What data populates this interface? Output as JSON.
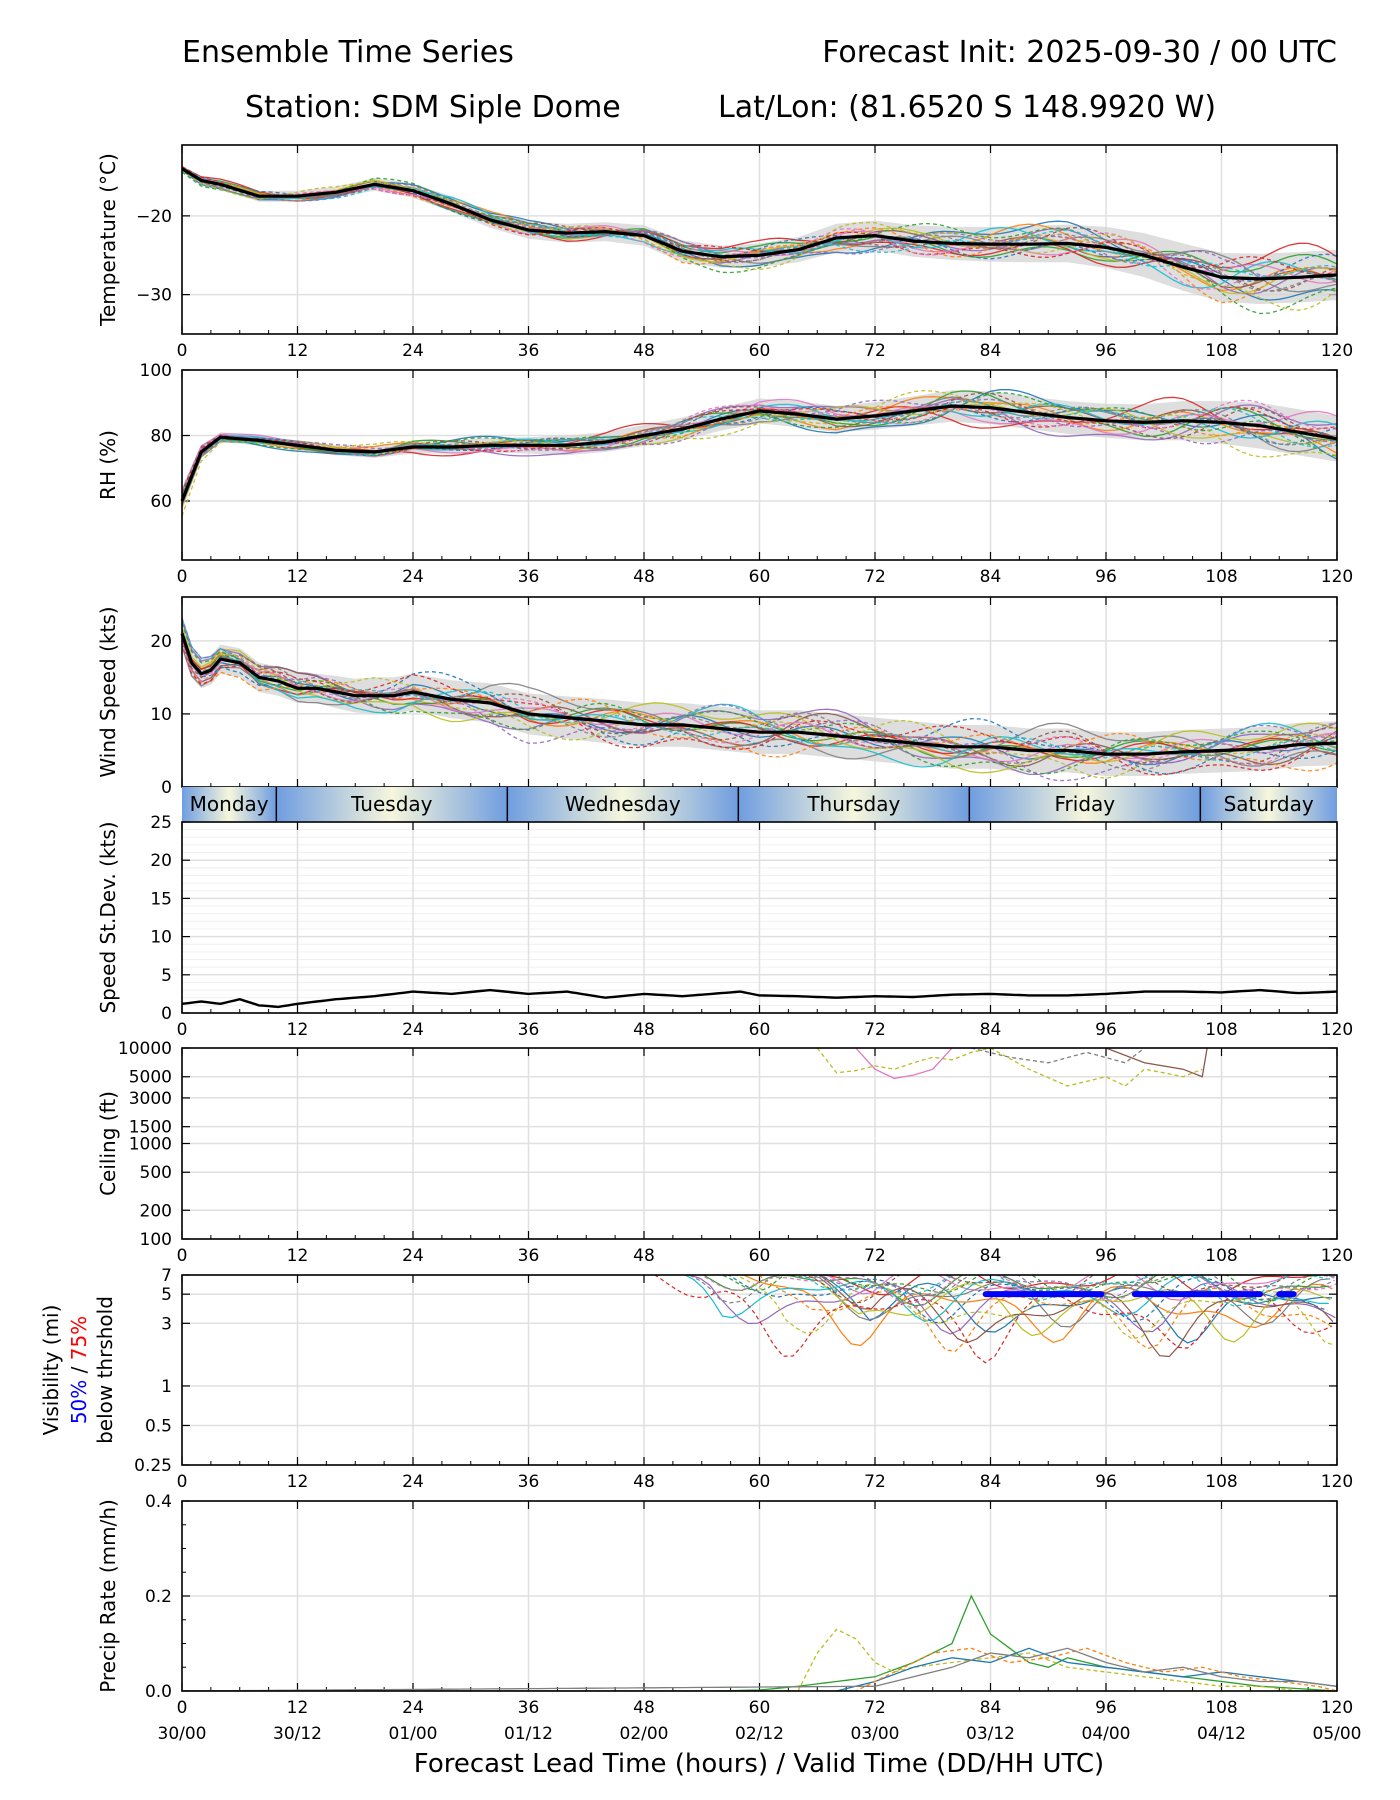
{
  "header": {
    "title_left": "Ensemble Time Series",
    "title_right": "Forecast Init: 2025-09-30 / 00 UTC",
    "station": "Station: SDM  Siple Dome",
    "latlon": "Lat/Lon: (81.6520 S 148.9920 W)"
  },
  "x_axis": {
    "label": "Forecast Lead Time (hours) / Valid Time (DD/HH UTC)",
    "lead_ticks": [
      "0",
      "12",
      "24",
      "36",
      "48",
      "60",
      "72",
      "84",
      "96",
      "108",
      "120"
    ],
    "valid_ticks": [
      "30/00",
      "30/12",
      "01/00",
      "01/12",
      "02/00",
      "02/12",
      "03/00",
      "03/12",
      "04/00",
      "04/12",
      "05/00"
    ],
    "range": [
      0,
      120
    ]
  },
  "day_band": {
    "days": [
      {
        "label": "Monday",
        "start": 0,
        "end": 9.8
      },
      {
        "label": "Tuesday",
        "start": 9.8,
        "end": 33.8
      },
      {
        "label": "Wednesday",
        "start": 33.8,
        "end": 57.8
      },
      {
        "label": "Thursday",
        "start": 57.8,
        "end": 81.8
      },
      {
        "label": "Friday",
        "start": 81.8,
        "end": 105.8
      },
      {
        "label": "Saturday",
        "start": 105.8,
        "end": 120
      }
    ]
  },
  "colors": {
    "mean": "#000000",
    "spread": "#d3d3d3",
    "vis50": "#0000ff",
    "vis75": "#ff0000",
    "members": [
      "#1f77b4",
      "#ff7f0e",
      "#2ca02c",
      "#d62728",
      "#9467bd",
      "#8c564b",
      "#e377c2",
      "#7f7f7f",
      "#bcbd22",
      "#17becf"
    ]
  },
  "chart_data": [
    {
      "type": "line",
      "name": "temperature",
      "ylabel": "Temperature (°C)",
      "ylim": [
        -35,
        -11
      ],
      "yticks": [
        "−20",
        "−30"
      ],
      "ytick_values": [
        -20,
        -30
      ],
      "mean": {
        "x": [
          0,
          2,
          4,
          8,
          12,
          16,
          20,
          24,
          28,
          32,
          36,
          40,
          44,
          48,
          52,
          56,
          60,
          64,
          68,
          72,
          76,
          80,
          84,
          88,
          92,
          96,
          100,
          104,
          108,
          112,
          116,
          120
        ],
        "y": [
          -14,
          -15.5,
          -16,
          -17.5,
          -17.5,
          -17,
          -16,
          -16.8,
          -18.5,
          -20.5,
          -21.8,
          -22.2,
          -22,
          -22.5,
          -24.5,
          -25.2,
          -25,
          -24.3,
          -22.8,
          -22.5,
          -23.2,
          -23.5,
          -23.6,
          -23.6,
          -23.5,
          -24,
          -25,
          -26.5,
          -27.8,
          -28,
          -27.8,
          -27.5
        ]
      },
      "spread_half_width": [
        0.3,
        0.5,
        0.6,
        0.7,
        0.7,
        0.7,
        0.8,
        0.9,
        1.0,
        1.0,
        1.1,
        1.2,
        1.2,
        1.3,
        1.4,
        1.4,
        1.5,
        1.6,
        1.8,
        1.9,
        2.0,
        2.1,
        2.2,
        2.3,
        2.4,
        2.6,
        2.8,
        3.0,
        3.1,
        3.2,
        3.2,
        3.2
      ]
    },
    {
      "type": "line",
      "name": "rh",
      "ylabel": "RH (%)",
      "ylim": [
        42,
        100
      ],
      "yticks": [
        "100",
        "80",
        "60"
      ],
      "ytick_values": [
        100,
        80,
        60
      ],
      "mean": {
        "x": [
          0,
          2,
          4,
          8,
          12,
          16,
          20,
          24,
          28,
          32,
          36,
          40,
          44,
          48,
          52,
          56,
          60,
          64,
          68,
          72,
          76,
          80,
          84,
          88,
          92,
          96,
          100,
          104,
          108,
          112,
          116,
          120
        ],
        "y": [
          60,
          75,
          79.5,
          78.5,
          77,
          75.5,
          75,
          76.5,
          76.5,
          77,
          77,
          77,
          78,
          80,
          82,
          85,
          87.5,
          86.5,
          85,
          86,
          87.5,
          89,
          88.5,
          87,
          85.5,
          84.5,
          84,
          84.5,
          84,
          83,
          81,
          79
        ]
      },
      "spread_half_width": [
        3,
        2,
        1.5,
        1.5,
        1.5,
        1.5,
        1.8,
        2,
        2,
        2.2,
        2.5,
        3,
        3,
        3.2,
        3.5,
        3.5,
        3.8,
        4,
        4,
        4.2,
        4.5,
        4.8,
        5,
        5,
        5,
        5.2,
        5.5,
        6,
        6.5,
        7,
        7,
        7
      ]
    },
    {
      "type": "line",
      "name": "wind_speed",
      "ylabel": "Wind Speed (kts)",
      "ylim": [
        0,
        26
      ],
      "yticks": [
        "20",
        "10",
        "0"
      ],
      "ytick_values": [
        20,
        10,
        0
      ],
      "mean": {
        "x": [
          0,
          1,
          2,
          3,
          4,
          6,
          8,
          10,
          12,
          14,
          16,
          18,
          20,
          22,
          24,
          28,
          32,
          36,
          40,
          44,
          48,
          52,
          56,
          60,
          64,
          68,
          72,
          76,
          80,
          84,
          88,
          92,
          96,
          100,
          104,
          108,
          112,
          116,
          120
        ],
        "y": [
          21,
          17,
          15.5,
          16,
          17.5,
          17,
          15,
          14.5,
          13.5,
          13.5,
          13,
          12.5,
          12.5,
          12.5,
          13,
          12,
          11.5,
          10,
          9.5,
          9,
          8.5,
          8.5,
          8,
          7.5,
          7.5,
          7,
          6.5,
          6,
          5.5,
          5.5,
          5,
          5,
          4.5,
          4.5,
          4.8,
          5,
          5.2,
          5.8,
          6
        ]
      },
      "spread_half_width": [
        2,
        2,
        2,
        2,
        2,
        2,
        2,
        2,
        2,
        2,
        2.2,
        2.3,
        2.5,
        2.5,
        2.5,
        2.6,
        2.7,
        2.8,
        2.9,
        3,
        3,
        3,
        3,
        3,
        3,
        3,
        3,
        3,
        3,
        3,
        3,
        3,
        3,
        3,
        3,
        3,
        3,
        3,
        3
      ]
    },
    {
      "type": "line",
      "name": "speed_stdev",
      "ylabel": "Speed St.Dev. (kts)",
      "ylim": [
        0,
        25
      ],
      "yticks": [
        "25",
        "20",
        "15",
        "10",
        "5",
        "0"
      ],
      "ytick_values": [
        25,
        20,
        15,
        10,
        5,
        0
      ],
      "mean": {
        "x": [
          0,
          2,
          4,
          6,
          8,
          10,
          12,
          16,
          20,
          24,
          28,
          32,
          36,
          40,
          44,
          48,
          52,
          56,
          58,
          60,
          64,
          68,
          72,
          76,
          80,
          84,
          88,
          92,
          96,
          100,
          104,
          108,
          112,
          116,
          120
        ],
        "y": [
          1.2,
          1.5,
          1.2,
          1.8,
          1.0,
          0.8,
          1.2,
          1.8,
          2.2,
          2.8,
          2.5,
          3.0,
          2.5,
          2.8,
          2.0,
          2.5,
          2.2,
          2.6,
          2.8,
          2.3,
          2.2,
          2.0,
          2.2,
          2.1,
          2.4,
          2.5,
          2.3,
          2.3,
          2.5,
          2.8,
          2.8,
          2.7,
          3.0,
          2.6,
          2.8
        ]
      }
    },
    {
      "type": "line",
      "scale": "log",
      "name": "ceiling",
      "ylabel": "Ceiling (ft)",
      "ylim": [
        100,
        10000
      ],
      "yticks": [
        "10000",
        "5000",
        "3000",
        "1500",
        "1000",
        "500",
        "200",
        "100"
      ],
      "ytick_values": [
        10000,
        5000,
        3000,
        1500,
        1000,
        500,
        200,
        100
      ],
      "members": [
        {
          "x": [
            66,
            68,
            70,
            72,
            74,
            76,
            78,
            80,
            82,
            84
          ],
          "y": [
            10000,
            5500,
            5800,
            6500,
            6000,
            7000,
            8000,
            7500,
            9000,
            10000
          ]
        },
        {
          "x": [
            70,
            72,
            74,
            76,
            78,
            80
          ],
          "y": [
            10000,
            6000,
            4800,
            5200,
            6000,
            10000
          ]
        },
        {
          "x": [
            84,
            88,
            92,
            96,
            98,
            100,
            102,
            104,
            106
          ],
          "y": [
            10000,
            6000,
            4000,
            5000,
            4000,
            6000,
            5500,
            5000,
            6000
          ]
        },
        {
          "x": [
            96,
            100,
            104,
            106,
            106.5
          ],
          "y": [
            10000,
            7000,
            6000,
            5000,
            10000
          ]
        },
        {
          "x": [
            82,
            86,
            90,
            94,
            98,
            100
          ],
          "y": [
            10000,
            8000,
            7000,
            9000,
            7000,
            10000
          ]
        }
      ]
    },
    {
      "type": "line",
      "scale": "log",
      "name": "visibility",
      "ylabel": "Visibility (mi)",
      "ylabel_50": "50%",
      "ylabel_sep": " / ",
      "ylabel_75": "75%",
      "ylabel_below": "below thrshold",
      "ylim": [
        0.25,
        7
      ],
      "yticks": [
        "7",
        "5",
        "3",
        "1",
        "0.5",
        "0.25"
      ],
      "ytick_values": [
        7,
        5,
        3,
        1,
        0.5,
        0.25
      ],
      "threshold_50_segments": [
        [
          83.5,
          95.5
        ],
        [
          99,
          112
        ],
        [
          114,
          115.5
        ]
      ],
      "threshold_value": 5
    },
    {
      "type": "line",
      "name": "precip_rate",
      "ylabel": "Precip Rate (mm/h)",
      "ylim": [
        0,
        0.4
      ],
      "yticks": [
        "0.4",
        "0.2",
        "0.0"
      ],
      "ytick_values": [
        0.4,
        0.2,
        0.0
      ],
      "members": [
        {
          "x": [
            0,
            55,
            60,
            64,
            68,
            72,
            76,
            80,
            82,
            84,
            88,
            90,
            92,
            96,
            100,
            104,
            108,
            112,
            116,
            120
          ],
          "y": [
            0,
            0,
            0.002,
            0.01,
            0.02,
            0.03,
            0.06,
            0.1,
            0.2,
            0.12,
            0.06,
            0.05,
            0.07,
            0.05,
            0.04,
            0.03,
            0.02,
            0.01,
            0.005,
            0
          ]
        },
        {
          "x": [
            0,
            64,
            66,
            68,
            70,
            72,
            74,
            76,
            80,
            84,
            88,
            92,
            96,
            100,
            104,
            108,
            112,
            116,
            120
          ],
          "y": [
            0,
            0,
            0.08,
            0.13,
            0.11,
            0.06,
            0.04,
            0.05,
            0.06,
            0.07,
            0.08,
            0.05,
            0.04,
            0.03,
            0.02,
            0.01,
            0.01,
            0,
            0
          ]
        },
        {
          "x": [
            0,
            68,
            72,
            76,
            80,
            84,
            88,
            92,
            96,
            100,
            104,
            108,
            112,
            116,
            120
          ],
          "y": [
            0,
            0,
            0.02,
            0.05,
            0.07,
            0.06,
            0.09,
            0.06,
            0.05,
            0.04,
            0.03,
            0.04,
            0.03,
            0.02,
            0.01
          ]
        },
        {
          "x": [
            0,
            70,
            74,
            78,
            82,
            86,
            90,
            94,
            98,
            102,
            106,
            110,
            114,
            118,
            120
          ],
          "y": [
            0,
            0,
            0.04,
            0.08,
            0.09,
            0.06,
            0.07,
            0.09,
            0.06,
            0.04,
            0.05,
            0.03,
            0.02,
            0.01,
            0
          ]
        },
        {
          "x": [
            0,
            72,
            76,
            80,
            84,
            88,
            92,
            96,
            100,
            104,
            108,
            112,
            116,
            120
          ],
          "y": [
            0,
            0.01,
            0.03,
            0.05,
            0.08,
            0.07,
            0.09,
            0.06,
            0.04,
            0.05,
            0.03,
            0.02,
            0.02,
            0.01
          ]
        }
      ]
    }
  ]
}
